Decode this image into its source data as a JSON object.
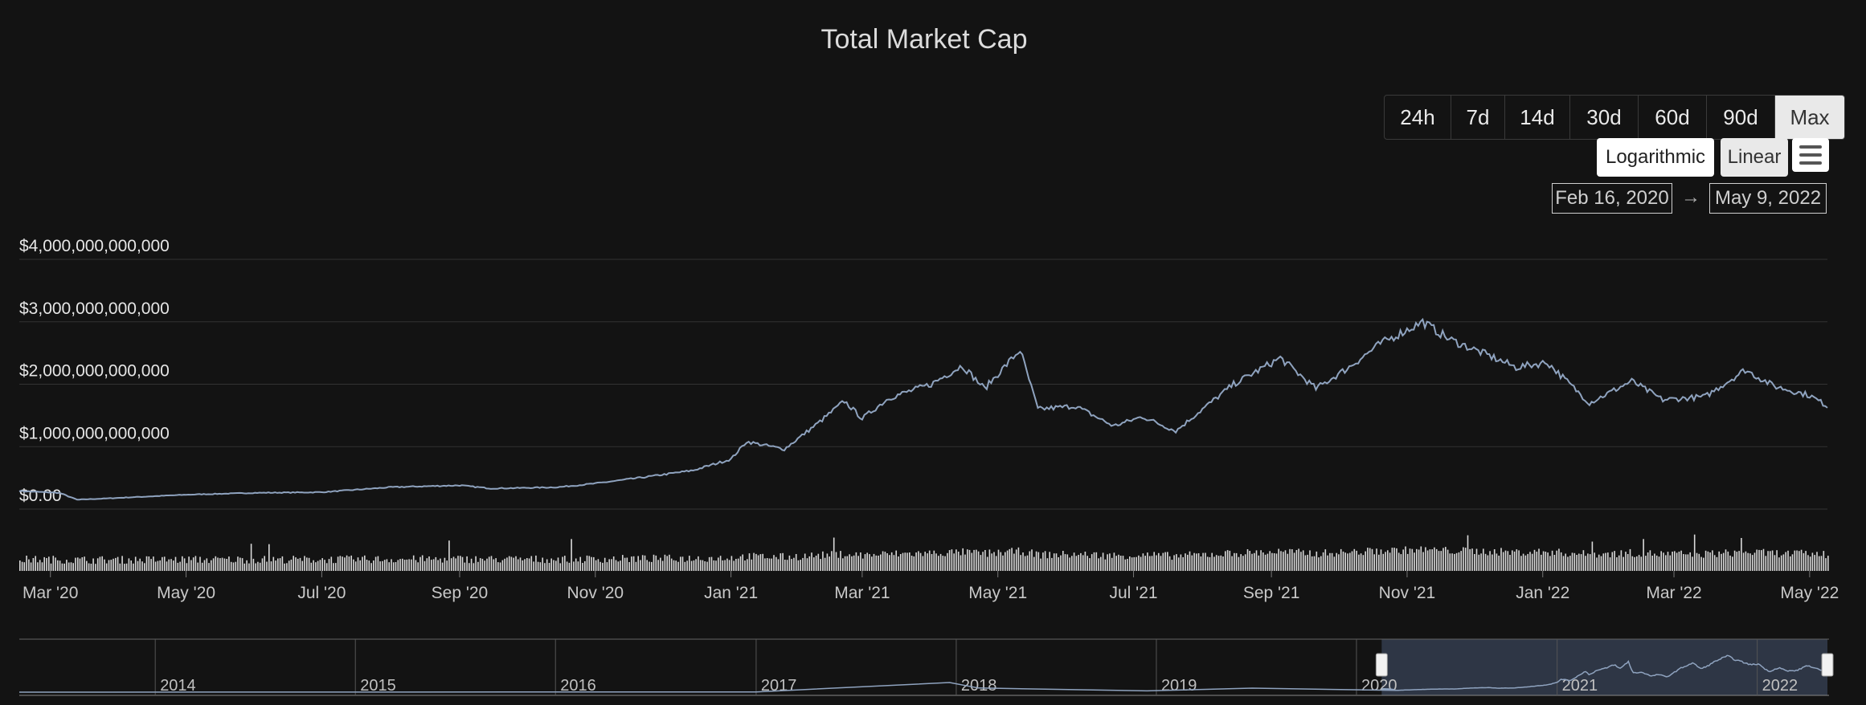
{
  "title": "Total Market Cap",
  "range_buttons": [
    {
      "label": "24h",
      "active": false
    },
    {
      "label": "7d",
      "active": false
    },
    {
      "label": "14d",
      "active": false
    },
    {
      "label": "30d",
      "active": false
    },
    {
      "label": "60d",
      "active": false
    },
    {
      "label": "90d",
      "active": false
    },
    {
      "label": "Max",
      "active": true
    }
  ],
  "scale": {
    "log_label": "Logarithmic",
    "linear_label": "Linear",
    "selected": "Linear"
  },
  "menu_icon": "hamburger-menu-icon",
  "date_range": {
    "from": "Feb 16, 2020",
    "arrow": "→",
    "to": "May 9, 2022"
  },
  "colors": {
    "background": "#131313",
    "line": "#8fa3bf",
    "volume": "#d9d9d9",
    "navigator_fill": "#2e3645",
    "grid": "#333333"
  },
  "chart_data": {
    "type": "line",
    "title": "Total Market Cap",
    "x_range": [
      "2020-02-16",
      "2022-05-09"
    ],
    "ylim": [
      0,
      4000000000000
    ],
    "y_ticks": [
      {
        "value": 4000000000000,
        "label": "$4,000,000,000,000"
      },
      {
        "value": 3000000000000,
        "label": "$3,000,000,000,000"
      },
      {
        "value": 2000000000000,
        "label": "$2,000,000,000,000"
      },
      {
        "value": 1000000000000,
        "label": "$1,000,000,000,000"
      },
      {
        "value": 0,
        "label": "$0.00"
      }
    ],
    "x_ticks": [
      {
        "date": "2020-03-01",
        "label": "Mar '20"
      },
      {
        "date": "2020-05-01",
        "label": "May '20"
      },
      {
        "date": "2020-07-01",
        "label": "Jul '20"
      },
      {
        "date": "2020-09-01",
        "label": "Sep '20"
      },
      {
        "date": "2020-11-01",
        "label": "Nov '20"
      },
      {
        "date": "2021-01-01",
        "label": "Jan '21"
      },
      {
        "date": "2021-03-01",
        "label": "Mar '21"
      },
      {
        "date": "2021-05-01",
        "label": "May '21"
      },
      {
        "date": "2021-07-01",
        "label": "Jul '21"
      },
      {
        "date": "2021-09-01",
        "label": "Sep '21"
      },
      {
        "date": "2021-11-01",
        "label": "Nov '21"
      },
      {
        "date": "2022-01-01",
        "label": "Jan '22"
      },
      {
        "date": "2022-03-01",
        "label": "Mar '22"
      },
      {
        "date": "2022-05-01",
        "label": "May '22"
      }
    ],
    "grid": true,
    "series": [
      {
        "points": [
          [
            "2020-02-16",
            290000000000
          ],
          [
            "2020-03-05",
            260000000000
          ],
          [
            "2020-03-13",
            150000000000
          ],
          [
            "2020-04-01",
            180000000000
          ],
          [
            "2020-05-01",
            230000000000
          ],
          [
            "2020-06-01",
            260000000000
          ],
          [
            "2020-07-01",
            270000000000
          ],
          [
            "2020-08-01",
            350000000000
          ],
          [
            "2020-09-01",
            380000000000
          ],
          [
            "2020-09-15",
            330000000000
          ],
          [
            "2020-10-15",
            350000000000
          ],
          [
            "2020-11-01",
            410000000000
          ],
          [
            "2020-11-25",
            520000000000
          ],
          [
            "2020-12-15",
            620000000000
          ],
          [
            "2021-01-01",
            800000000000
          ],
          [
            "2021-01-08",
            1080000000000
          ],
          [
            "2021-01-25",
            960000000000
          ],
          [
            "2021-02-10",
            1400000000000
          ],
          [
            "2021-02-21",
            1730000000000
          ],
          [
            "2021-03-01",
            1450000000000
          ],
          [
            "2021-03-13",
            1780000000000
          ],
          [
            "2021-04-01",
            2000000000000
          ],
          [
            "2021-04-15",
            2300000000000
          ],
          [
            "2021-04-25",
            1930000000000
          ],
          [
            "2021-05-11",
            2550000000000
          ],
          [
            "2021-05-19",
            1600000000000
          ],
          [
            "2021-06-05",
            1650000000000
          ],
          [
            "2021-06-22",
            1330000000000
          ],
          [
            "2021-07-05",
            1480000000000
          ],
          [
            "2021-07-20",
            1250000000000
          ],
          [
            "2021-08-01",
            1600000000000
          ],
          [
            "2021-08-15",
            2000000000000
          ],
          [
            "2021-09-05",
            2420000000000
          ],
          [
            "2021-09-21",
            1930000000000
          ],
          [
            "2021-10-05",
            2250000000000
          ],
          [
            "2021-10-20",
            2650000000000
          ],
          [
            "2021-11-08",
            3000000000000
          ],
          [
            "2021-11-20",
            2720000000000
          ],
          [
            "2021-12-05",
            2500000000000
          ],
          [
            "2021-12-20",
            2270000000000
          ],
          [
            "2022-01-03",
            2350000000000
          ],
          [
            "2022-01-22",
            1700000000000
          ],
          [
            "2022-02-10",
            2050000000000
          ],
          [
            "2022-02-24",
            1750000000000
          ],
          [
            "2022-03-15",
            1800000000000
          ],
          [
            "2022-04-02",
            2230000000000
          ],
          [
            "2022-04-15",
            1970000000000
          ],
          [
            "2022-05-01",
            1820000000000
          ],
          [
            "2022-05-09",
            1650000000000
          ]
        ]
      }
    ],
    "navigator": {
      "year_labels": [
        "2014",
        "2015",
        "2016",
        "2017",
        "2018",
        "2019",
        "2020",
        "2021",
        "2022"
      ],
      "x_range": [
        "2013-04-28",
        "2022-05-09"
      ],
      "selection": [
        "2020-02-16",
        "2022-05-09"
      ]
    }
  }
}
